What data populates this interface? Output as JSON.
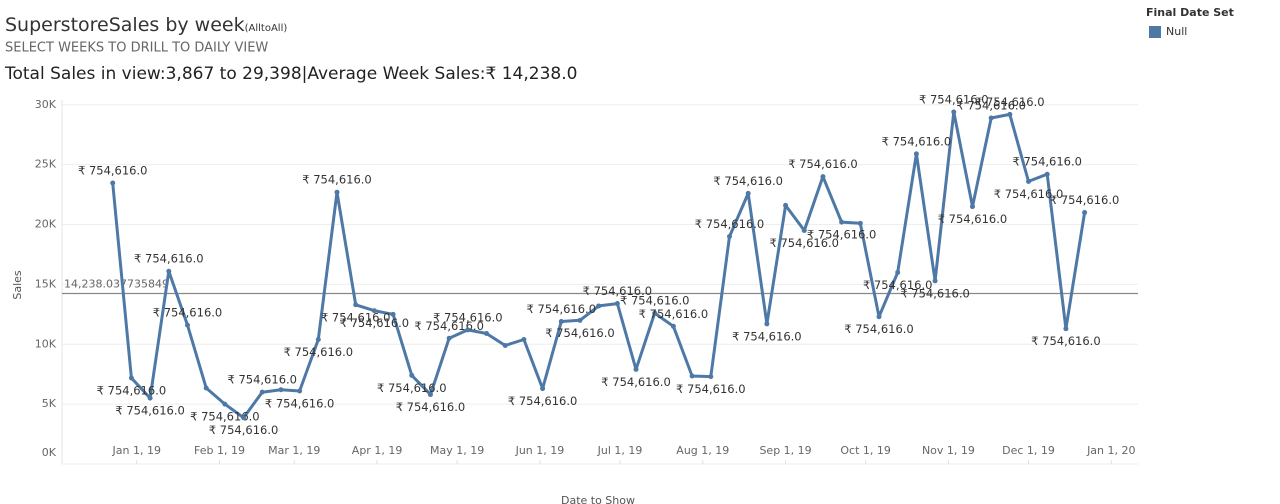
{
  "chart_data": {
    "type": "line",
    "title": "SuperstoreSales by week",
    "title_suffix": "(AlltoAll)",
    "subtitle": "SELECT WEEKS TO DRILL TO DAILY VIEW",
    "summary": "Total Sales in view:3,867 to 29,398|Average Week Sales:₹ 14,238.0",
    "ylabel": "Sales",
    "xlabel": "Date to Show",
    "legend_title": "Final Date Set",
    "legend_position": "top-right",
    "grid": true,
    "x": [
      "2018-12-23",
      "2018-12-30",
      "2019-01-06",
      "2019-01-13",
      "2019-01-20",
      "2019-01-27",
      "2019-02-03",
      "2019-02-10",
      "2019-02-17",
      "2019-02-24",
      "2019-03-03",
      "2019-03-10",
      "2019-03-17",
      "2019-03-24",
      "2019-03-31",
      "2019-04-07",
      "2019-04-14",
      "2019-04-21",
      "2019-04-28",
      "2019-05-05",
      "2019-05-12",
      "2019-05-19",
      "2019-05-26",
      "2019-06-02",
      "2019-06-09",
      "2019-06-16",
      "2019-06-23",
      "2019-06-30",
      "2019-07-07",
      "2019-07-14",
      "2019-07-21",
      "2019-07-28",
      "2019-08-04",
      "2019-08-11",
      "2019-08-18",
      "2019-08-25",
      "2019-09-01",
      "2019-09-08",
      "2019-09-15",
      "2019-09-22",
      "2019-09-29",
      "2019-10-06",
      "2019-10-13",
      "2019-10-20",
      "2019-10-27",
      "2019-11-03",
      "2019-11-10",
      "2019-11-17",
      "2019-11-24",
      "2019-12-01",
      "2019-12-08",
      "2019-12-15",
      "2019-12-22"
    ],
    "series": [
      {
        "name": "Null",
        "color": "#4e79a7",
        "values": [
          23470,
          7180,
          5500,
          16100,
          11600,
          6350,
          5000,
          3867,
          6000,
          6200,
          6100,
          10400,
          22700,
          13300,
          12800,
          12500,
          7400,
          5800,
          10500,
          11200,
          10900,
          9900,
          10400,
          6300,
          11900,
          12000,
          13200,
          13400,
          7900,
          12600,
          11500,
          7350,
          7300,
          19000,
          22600,
          11700,
          21600,
          19500,
          24000,
          20200,
          20100,
          12300,
          16000,
          25900,
          15300,
          29398,
          21500,
          28900,
          29200,
          23600,
          24200,
          11300,
          21000
        ],
        "point_labels": [
          "₹ 754,616.0",
          "₹ 754,616.0",
          "₹ 754,616.0",
          "₹ 754,616.0",
          "₹ 754,616.0",
          null,
          "₹ 754,616.0",
          "₹ 754,616.0",
          "₹ 754,616.0",
          null,
          "₹ 754,616.0",
          "₹ 754,616.0",
          "₹ 754,616.0",
          "₹ 754,616.0",
          "₹ 754,616.0",
          null,
          "₹ 754,616.0",
          "₹ 754,616.0",
          "₹ 754,616.0",
          "₹ 754,616.0",
          null,
          null,
          null,
          "₹ 754,616.0",
          "₹ 754,616.0",
          "₹ 754,616.0",
          null,
          "₹ 754,616.0",
          "₹ 754,616.0",
          "₹ 754,616.0",
          "₹ 754,616.0",
          null,
          "₹ 754,616.0",
          "₹ 754,616.0",
          "₹ 754,616.0",
          "₹ 754,616.0",
          null,
          "₹ 754,616.0",
          "₹ 754,616.0",
          "₹ 754,616.0",
          null,
          "₹ 754,616.0",
          "₹ 754,616.0",
          "₹ 754,616.0",
          "₹ 754,616.0",
          "₹ 754,616.0",
          "₹ 754,616.0",
          "₹ 754,616.0",
          "₹ 754,616.0",
          "₹ 754,616.0",
          "₹ 754,616.0",
          "₹ 754,616.0",
          "₹ 754,616.0"
        ]
      }
    ],
    "reference_line": {
      "value": 14238.037735849,
      "label": "14,238.037735849"
    },
    "xlim": [
      "2018-12-04",
      "2020-01-11"
    ],
    "xticks": [
      {
        "value": "2019-01-01",
        "label": "Jan 1, 19"
      },
      {
        "value": "2019-02-01",
        "label": "Feb 1, 19"
      },
      {
        "value": "2019-03-01",
        "label": "Mar 1, 19"
      },
      {
        "value": "2019-04-01",
        "label": "Apr 1, 19"
      },
      {
        "value": "2019-05-01",
        "label": "May 1, 19"
      },
      {
        "value": "2019-06-01",
        "label": "Jun 1, 19"
      },
      {
        "value": "2019-07-01",
        "label": "Jul 1, 19"
      },
      {
        "value": "2019-08-01",
        "label": "Aug 1, 19"
      },
      {
        "value": "2019-09-01",
        "label": "Sep 1, 19"
      },
      {
        "value": "2019-10-01",
        "label": "Oct 1, 19"
      },
      {
        "value": "2019-11-01",
        "label": "Nov 1, 19"
      },
      {
        "value": "2019-12-01",
        "label": "Dec 1, 19"
      },
      {
        "value": "2020-01-01",
        "label": "Jan 1, 20"
      }
    ],
    "ylim": [
      0,
      30400
    ],
    "yticks": [
      {
        "value": 0,
        "label": "0K"
      },
      {
        "value": 5000,
        "label": "5K"
      },
      {
        "value": 10000,
        "label": "10K"
      },
      {
        "value": 15000,
        "label": "15K"
      },
      {
        "value": 20000,
        "label": "20K"
      },
      {
        "value": 25000,
        "label": "25K"
      },
      {
        "value": 30000,
        "label": "30K"
      }
    ]
  }
}
